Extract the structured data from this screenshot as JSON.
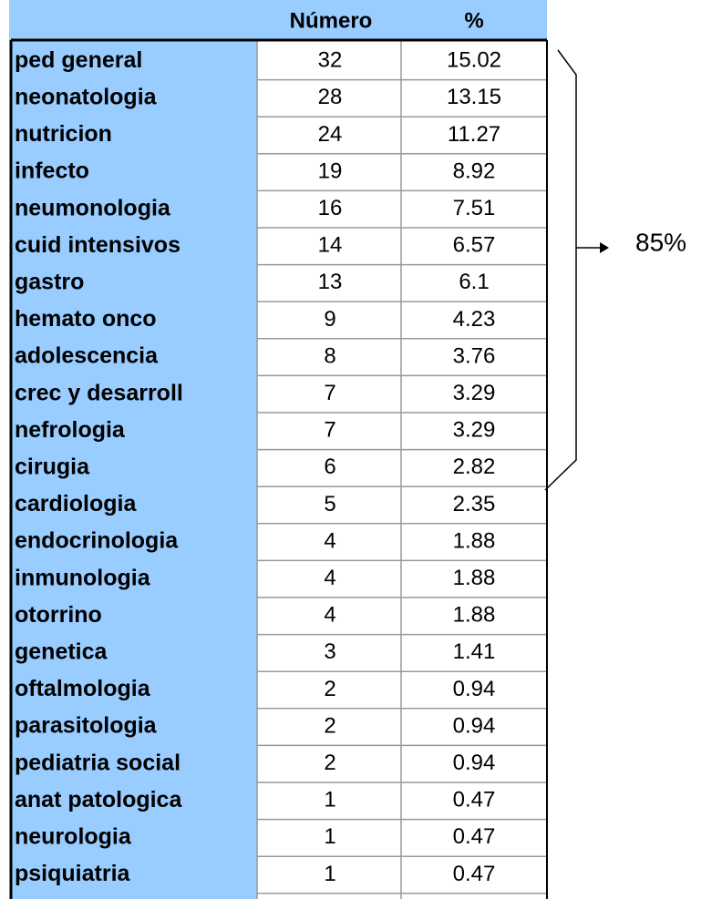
{
  "table": {
    "header": [
      "Número",
      "%"
    ],
    "rows": [
      [
        "ped general",
        32,
        15.02
      ],
      [
        "neonatologia",
        28,
        13.15
      ],
      [
        "nutricion",
        24,
        11.27
      ],
      [
        "infecto",
        19,
        8.92
      ],
      [
        "neumonologia",
        16,
        7.51
      ],
      [
        "cuid intensivos",
        14,
        6.57
      ],
      [
        "gastro",
        13,
        6.1
      ],
      [
        "hemato onco",
        9,
        4.23
      ],
      [
        "adolescencia",
        8,
        3.76
      ],
      [
        "crec y desarroll",
        7,
        3.29
      ],
      [
        "nefrologia",
        7,
        3.29
      ],
      [
        "cirugia",
        6,
        2.82
      ],
      [
        "cardiologia",
        5,
        2.35
      ],
      [
        "endocrinologia",
        4,
        1.88
      ],
      [
        "inmunologia",
        4,
        1.88
      ],
      [
        "otorrino",
        4,
        1.88
      ],
      [
        "genetica",
        3,
        1.41
      ],
      [
        "oftalmologia",
        2,
        0.94
      ],
      [
        "parasitologia",
        2,
        0.94
      ],
      [
        "pediatria social",
        2,
        0.94
      ],
      [
        "anat patologica",
        1,
        0.47
      ],
      [
        "neurologia",
        1,
        0.47
      ],
      [
        "psiquiatria",
        1,
        0.47
      ]
    ]
  },
  "annotation": "85%"
}
